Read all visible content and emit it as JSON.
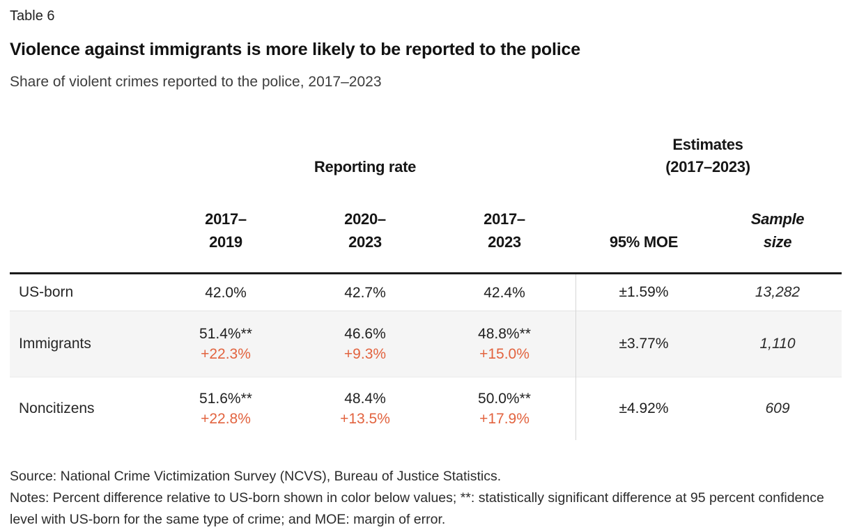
{
  "header": {
    "table_label": "Table 6",
    "title": "Violence against immigrants is more likely to be reported to the police",
    "subtitle": "Share of violent crimes reported to the police, 2017–2023"
  },
  "table": {
    "group_headers": {
      "reporting_rate": "Reporting rate",
      "estimates_line1": "Estimates",
      "estimates_line2": "(2017–2023)"
    },
    "columns": [
      {
        "line1": "2017–",
        "line2": "2019"
      },
      {
        "line1": "2020–",
        "line2": "2023"
      },
      {
        "line1": "2017–",
        "line2": "2023"
      },
      {
        "label": "95% MOE"
      },
      {
        "line1": "Sample",
        "line2": "size"
      }
    ],
    "rows": [
      {
        "label": "US-born",
        "rates": [
          {
            "value": "42.0%"
          },
          {
            "value": "42.7%"
          },
          {
            "value": "42.4%"
          }
        ],
        "moe": "±1.59%",
        "sample": "13,282"
      },
      {
        "label": "Immigrants",
        "rates": [
          {
            "value": "51.4%**",
            "diff": "+22.3%"
          },
          {
            "value": "46.6%",
            "diff": "+9.3%"
          },
          {
            "value": "48.8%**",
            "diff": "+15.0%"
          }
        ],
        "moe": "±3.77%",
        "sample": "1,110"
      },
      {
        "label": "Noncitizens",
        "rates": [
          {
            "value": "51.6%**",
            "diff": "+22.8%"
          },
          {
            "value": "48.4%",
            "diff": "+13.5%"
          },
          {
            "value": "50.0%**",
            "diff": "+17.9%"
          }
        ],
        "moe": "±4.92%",
        "sample": "609"
      }
    ]
  },
  "footer": {
    "source": "Source: National Crime Victimization Survey (NCVS), Bureau of Justice Statistics.",
    "notes": "Notes: Percent difference relative to US-born shown in color below values; **: statistically significant difference at 95 percent confidence level with US-born for the same type of crime; and MOE: margin of error."
  },
  "colors": {
    "accent_orange": "#e2633f",
    "row_shade": "#f5f5f5",
    "rule_black": "#1a1a1a"
  }
}
